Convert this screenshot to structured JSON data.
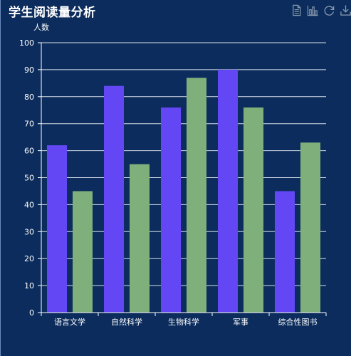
{
  "title": "学生阅读量分析",
  "toolbox": {
    "icons": [
      "data-view-icon",
      "bar-chart-switch-icon",
      "restore-icon",
      "save-image-icon"
    ]
  },
  "colors": {
    "background": "#0b2c5c",
    "series_a": "#6347f5",
    "series_b": "#7fb07b",
    "axis": "#ffffff",
    "toolbox": "#8a9aad"
  },
  "chart_data": {
    "type": "bar",
    "title": "学生阅读量分析",
    "ylabel": "人数",
    "xlabel": "",
    "ylim": [
      0,
      100
    ],
    "yticks": [
      0,
      10,
      20,
      30,
      40,
      50,
      60,
      70,
      80,
      90,
      100
    ],
    "categories": [
      "语言文学",
      "自然科学",
      "生物科学",
      "军事",
      "综合性图书"
    ],
    "series": [
      {
        "values": [
          62,
          84,
          76,
          90,
          45
        ]
      },
      {
        "values": [
          45,
          55,
          87,
          76,
          63
        ]
      }
    ],
    "grid": true,
    "legend": "none"
  }
}
